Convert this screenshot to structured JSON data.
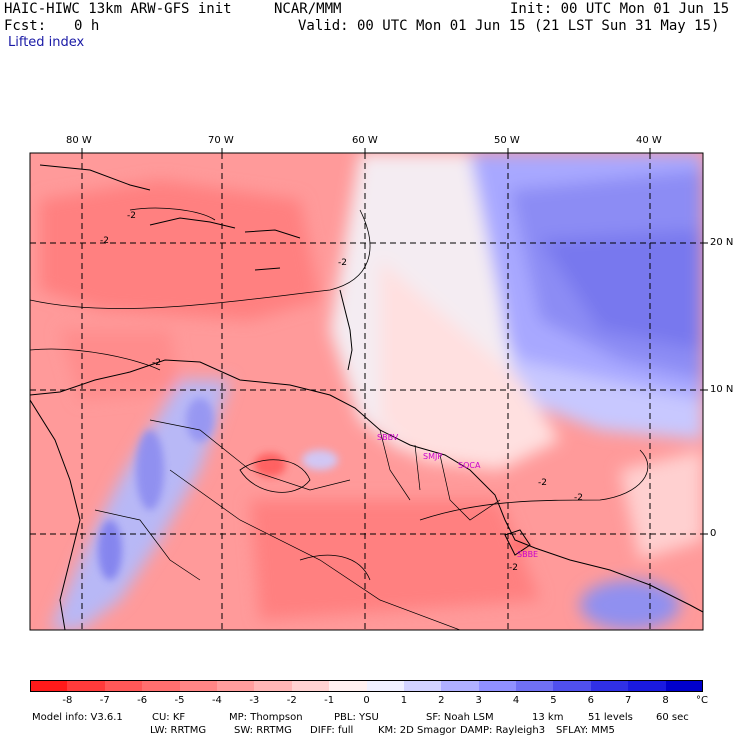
{
  "header": {
    "title_left": "HAIC-HIWC 13km ARW-GFS init",
    "title_center": "NCAR/MMM",
    "init": "Init: 00 UTC Mon 01 Jun 15",
    "fcst_label": "Fcst:",
    "fcst_value": "0 h",
    "valid": "Valid: 00 UTC Mon 01 Jun 15 (21 LST Sun 31 May 15)",
    "field": "Lifted index"
  },
  "map": {
    "lon_labels": [
      "80 W",
      "70 W",
      "60 W",
      "50 W",
      "40 W"
    ],
    "lat_labels": [
      "20 N",
      "10 N",
      "0"
    ],
    "contour_labels": [
      "-2",
      "-2",
      "-2",
      "-2",
      "-2",
      "-2",
      "-2"
    ],
    "stations": [
      "SBBV",
      "SMJP",
      "SOCA",
      "SBBE"
    ]
  },
  "colorbar": {
    "labels": [
      "-8",
      "-7",
      "-6",
      "-5",
      "-4",
      "-3",
      "-2",
      "-1",
      "0",
      "1",
      "2",
      "3",
      "4",
      "5",
      "6",
      "7",
      "8"
    ],
    "unit": "°C",
    "colors": [
      "#ff1a1a",
      "#ff3b3b",
      "#ff5858",
      "#ff6f6f",
      "#ff8686",
      "#ff9e9e",
      "#ffb7b7",
      "#ffd2d2",
      "#fff0f0",
      "#f0f0ff",
      "#d2d2ff",
      "#b0b0ff",
      "#9090ff",
      "#7070f4",
      "#5050ee",
      "#3030e6",
      "#1a1ae0",
      "#0000cc"
    ]
  },
  "footer": {
    "line1": [
      "Model info: V3.6.1",
      "CU: KF",
      "MP: Thompson",
      "PBL: YSU",
      "SF: Noah LSM",
      "13 km",
      "51 levels",
      "60 sec"
    ],
    "line2": [
      "LW: RRTMG",
      "SW: RRTMG",
      "DIFF: full",
      "KM: 2D Smagor",
      "DAMP: Rayleigh3",
      "SFLAY: MM5"
    ]
  }
}
